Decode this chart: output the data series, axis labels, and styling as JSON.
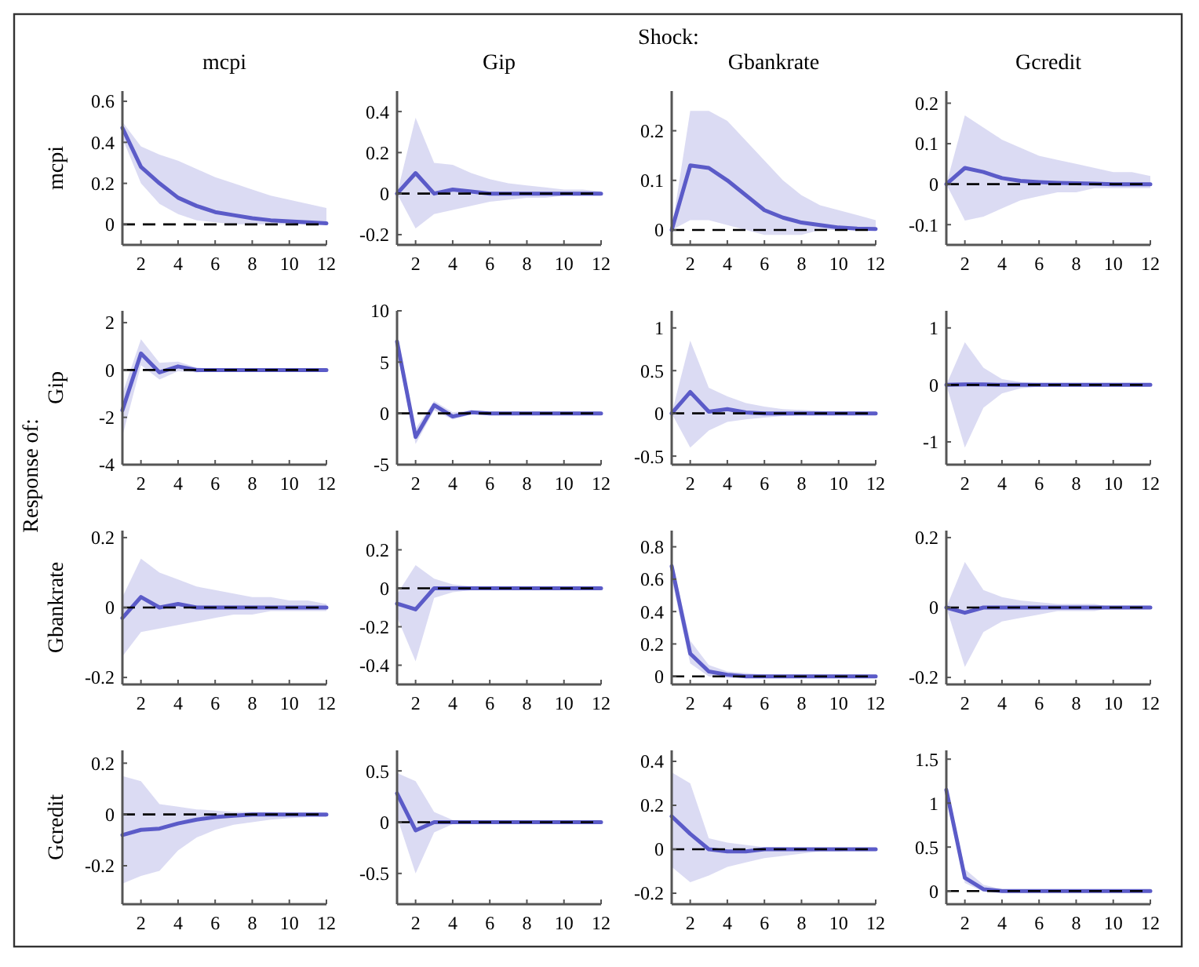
{
  "chart_data": [
    {
      "type": "line",
      "title": "mcpi",
      "ylabel": "mcpi",
      "annotations": [
        "Shock:",
        "Response of:"
      ],
      "x": [
        1,
        2,
        3,
        4,
        5,
        6,
        7,
        8,
        9,
        10,
        11,
        12
      ],
      "xlim": [
        1,
        12
      ],
      "xticks": [
        2,
        4,
        6,
        8,
        10,
        12
      ],
      "ylim": [
        -0.1,
        0.65
      ],
      "yticks": [
        0,
        0.2,
        0.4,
        0.6
      ],
      "ref_lines": [
        {
          "axis": "y",
          "value": 0,
          "line_style": "dashed",
          "color": "#000000"
        }
      ],
      "series": [
        {
          "color": "#5b5bc8",
          "values": [
            0.47,
            0.28,
            0.2,
            0.13,
            0.09,
            0.06,
            0.045,
            0.03,
            0.02,
            0.015,
            0.01,
            0.005
          ],
          "lower": [
            0.42,
            0.2,
            0.1,
            0.05,
            0.02,
            0.01,
            0,
            0,
            0,
            0,
            0,
            0
          ],
          "upper": [
            0.5,
            0.38,
            0.34,
            0.31,
            0.27,
            0.23,
            0.2,
            0.17,
            0.14,
            0.12,
            0.1,
            0.08
          ]
        }
      ]
    },
    {
      "type": "line",
      "title": "Gip",
      "x": [
        1,
        2,
        3,
        4,
        5,
        6,
        7,
        8,
        9,
        10,
        11,
        12
      ],
      "xlim": [
        1,
        12
      ],
      "xticks": [
        2,
        4,
        6,
        8,
        10,
        12
      ],
      "ylim": [
        -0.25,
        0.5
      ],
      "yticks": [
        -0.2,
        0,
        0.2,
        0.4
      ],
      "ref_lines": [
        {
          "axis": "y",
          "value": 0,
          "line_style": "dashed",
          "color": "#000000"
        }
      ],
      "series": [
        {
          "color": "#5b5bc8",
          "values": [
            0,
            0.1,
            0,
            0.02,
            0.01,
            0,
            0,
            0,
            0,
            0,
            0,
            0
          ],
          "lower": [
            0,
            -0.17,
            -0.1,
            -0.08,
            -0.06,
            -0.04,
            -0.03,
            -0.02,
            -0.02,
            -0.01,
            -0.01,
            -0.01
          ],
          "upper": [
            0,
            0.37,
            0.15,
            0.14,
            0.1,
            0.07,
            0.05,
            0.04,
            0.03,
            0.02,
            0.02,
            0.01
          ]
        }
      ]
    },
    {
      "type": "line",
      "title": "Gbankrate",
      "x": [
        1,
        2,
        3,
        4,
        5,
        6,
        7,
        8,
        9,
        10,
        11,
        12
      ],
      "xlim": [
        1,
        12
      ],
      "xticks": [
        2,
        4,
        6,
        8,
        10,
        12
      ],
      "ylim": [
        -0.03,
        0.28
      ],
      "yticks": [
        0,
        0.1,
        0.2
      ],
      "ref_lines": [
        {
          "axis": "y",
          "value": 0,
          "line_style": "dashed",
          "color": "#000000"
        }
      ],
      "series": [
        {
          "color": "#5b5bc8",
          "values": [
            0,
            0.13,
            0.125,
            0.1,
            0.07,
            0.04,
            0.025,
            0.015,
            0.01,
            0.005,
            0.003,
            0.002
          ],
          "lower": [
            0,
            0.02,
            0.02,
            0.01,
            0,
            -0.01,
            -0.01,
            -0.01,
            0,
            0,
            0,
            0
          ],
          "upper": [
            0,
            0.24,
            0.24,
            0.22,
            0.18,
            0.14,
            0.1,
            0.07,
            0.05,
            0.04,
            0.03,
            0.02
          ]
        }
      ]
    },
    {
      "type": "line",
      "title": "Gcredit",
      "x": [
        1,
        2,
        3,
        4,
        5,
        6,
        7,
        8,
        9,
        10,
        11,
        12
      ],
      "xlim": [
        1,
        12
      ],
      "xticks": [
        2,
        4,
        6,
        8,
        10,
        12
      ],
      "ylim": [
        -0.15,
        0.23
      ],
      "yticks": [
        -0.1,
        0,
        0.1,
        0.2
      ],
      "ref_lines": [
        {
          "axis": "y",
          "value": 0,
          "line_style": "dashed",
          "color": "#000000"
        }
      ],
      "series": [
        {
          "color": "#5b5bc8",
          "values": [
            0,
            0.04,
            0.03,
            0.015,
            0.008,
            0.005,
            0.003,
            0.002,
            0.001,
            0,
            0,
            0
          ],
          "lower": [
            0,
            -0.09,
            -0.08,
            -0.06,
            -0.04,
            -0.03,
            -0.02,
            -0.02,
            -0.01,
            -0.01,
            -0.01,
            -0.01
          ],
          "upper": [
            0,
            0.17,
            0.14,
            0.11,
            0.09,
            0.07,
            0.06,
            0.05,
            0.04,
            0.03,
            0.03,
            0.02
          ]
        }
      ]
    },
    {
      "type": "line",
      "ylabel": "Gip",
      "x": [
        1,
        2,
        3,
        4,
        5,
        6,
        7,
        8,
        9,
        10,
        11,
        12
      ],
      "xlim": [
        1,
        12
      ],
      "xticks": [
        2,
        4,
        6,
        8,
        10,
        12
      ],
      "ylim": [
        -4,
        2.5
      ],
      "yticks": [
        -4,
        -2,
        0,
        2
      ],
      "ref_lines": [
        {
          "axis": "y",
          "value": 0,
          "line_style": "dashed",
          "color": "#000000"
        }
      ],
      "series": [
        {
          "color": "#5b5bc8",
          "values": [
            -1.7,
            0.7,
            -0.1,
            0.15,
            0,
            0,
            0,
            0,
            0,
            0,
            0,
            0
          ],
          "lower": [
            -2.8,
            0.2,
            -0.4,
            -0.05,
            -0.1,
            -0.05,
            -0.03,
            -0.02,
            -0.01,
            -0.01,
            0,
            0
          ],
          "upper": [
            -1,
            1.3,
            0.3,
            0.35,
            0.1,
            0.05,
            0.03,
            0.02,
            0.01,
            0.01,
            0,
            0
          ]
        }
      ]
    },
    {
      "type": "line",
      "x": [
        1,
        2,
        3,
        4,
        5,
        6,
        7,
        8,
        9,
        10,
        11,
        12
      ],
      "xlim": [
        1,
        12
      ],
      "xticks": [
        2,
        4,
        6,
        8,
        10,
        12
      ],
      "ylim": [
        -5,
        10
      ],
      "yticks": [
        -5,
        0,
        5,
        10
      ],
      "ref_lines": [
        {
          "axis": "y",
          "value": 0,
          "line_style": "dashed",
          "color": "#000000"
        }
      ],
      "series": [
        {
          "color": "#5b5bc8",
          "values": [
            7,
            -2.3,
            0.8,
            -0.3,
            0.1,
            0,
            0,
            0,
            0,
            0,
            0,
            0
          ],
          "lower": [
            6,
            -3,
            0.3,
            -0.6,
            -0.1,
            -0.1,
            -0.05,
            0,
            0,
            0,
            0,
            0
          ],
          "upper": [
            7.5,
            -1.5,
            1.2,
            0.1,
            0.3,
            0.1,
            0.05,
            0,
            0,
            0,
            0,
            0
          ]
        }
      ]
    },
    {
      "type": "line",
      "x": [
        1,
        2,
        3,
        4,
        5,
        6,
        7,
        8,
        9,
        10,
        11,
        12
      ],
      "xlim": [
        1,
        12
      ],
      "xticks": [
        2,
        4,
        6,
        8,
        10,
        12
      ],
      "ylim": [
        -0.6,
        1.2
      ],
      "yticks": [
        -0.5,
        0,
        0.5,
        1
      ],
      "ref_lines": [
        {
          "axis": "y",
          "value": 0,
          "line_style": "dashed",
          "color": "#000000"
        }
      ],
      "series": [
        {
          "color": "#5b5bc8",
          "values": [
            0,
            0.25,
            0.02,
            0.05,
            0.01,
            0,
            0,
            0,
            0,
            0,
            0,
            0
          ],
          "lower": [
            0,
            -0.4,
            -0.2,
            -0.1,
            -0.07,
            -0.05,
            -0.03,
            -0.02,
            -0.02,
            -0.01,
            -0.01,
            -0.01
          ],
          "upper": [
            0,
            0.85,
            0.3,
            0.2,
            0.12,
            0.08,
            0.05,
            0.04,
            0.03,
            0.02,
            0.02,
            0.01
          ]
        }
      ]
    },
    {
      "type": "line",
      "x": [
        1,
        2,
        3,
        4,
        5,
        6,
        7,
        8,
        9,
        10,
        11,
        12
      ],
      "xlim": [
        1,
        12
      ],
      "xticks": [
        2,
        4,
        6,
        8,
        10,
        12
      ],
      "ylim": [
        -1.4,
        1.3
      ],
      "yticks": [
        -1,
        0,
        1
      ],
      "ref_lines": [
        {
          "axis": "y",
          "value": 0,
          "line_style": "dashed",
          "color": "#000000"
        }
      ],
      "series": [
        {
          "color": "#5b5bc8",
          "values": [
            0,
            0.01,
            0.01,
            0,
            0,
            0,
            0,
            0,
            0,
            0,
            0,
            0
          ],
          "lower": [
            0,
            -1.1,
            -0.4,
            -0.15,
            -0.06,
            -0.03,
            -0.02,
            -0.01,
            -0.01,
            0,
            0,
            0
          ],
          "upper": [
            0,
            0.75,
            0.3,
            0.1,
            0.05,
            0.03,
            0.02,
            0.01,
            0.01,
            0,
            0,
            0
          ]
        }
      ]
    },
    {
      "type": "line",
      "ylabel": "Gbankrate",
      "x": [
        1,
        2,
        3,
        4,
        5,
        6,
        7,
        8,
        9,
        10,
        11,
        12
      ],
      "xlim": [
        1,
        12
      ],
      "xticks": [
        2,
        4,
        6,
        8,
        10,
        12
      ],
      "ylim": [
        -0.22,
        0.22
      ],
      "yticks": [
        -0.2,
        0,
        0.2
      ],
      "ref_lines": [
        {
          "axis": "y",
          "value": 0,
          "line_style": "dashed",
          "color": "#000000"
        }
      ],
      "series": [
        {
          "color": "#5b5bc8",
          "values": [
            -0.03,
            0.03,
            0,
            0.01,
            0,
            0,
            0,
            0,
            0,
            0,
            0,
            0
          ],
          "lower": [
            -0.14,
            -0.07,
            -0.06,
            -0.05,
            -0.04,
            -0.03,
            -0.02,
            -0.02,
            -0.01,
            -0.01,
            -0.01,
            -0.01
          ],
          "upper": [
            0.03,
            0.14,
            0.1,
            0.08,
            0.06,
            0.05,
            0.04,
            0.03,
            0.03,
            0.02,
            0.02,
            0.01
          ]
        }
      ]
    },
    {
      "type": "line",
      "x": [
        1,
        2,
        3,
        4,
        5,
        6,
        7,
        8,
        9,
        10,
        11,
        12
      ],
      "xlim": [
        1,
        12
      ],
      "xticks": [
        2,
        4,
        6,
        8,
        10,
        12
      ],
      "ylim": [
        -0.5,
        0.3
      ],
      "yticks": [
        -0.4,
        -0.2,
        0,
        0.2
      ],
      "ref_lines": [
        {
          "axis": "y",
          "value": 0,
          "line_style": "dashed",
          "color": "#000000"
        }
      ],
      "series": [
        {
          "color": "#5b5bc8",
          "values": [
            -0.08,
            -0.11,
            0,
            0,
            0,
            0,
            0,
            0,
            0,
            0,
            0,
            0
          ],
          "lower": [
            -0.15,
            -0.38,
            -0.05,
            -0.02,
            -0.01,
            0,
            0,
            0,
            0,
            0,
            0,
            0
          ],
          "upper": [
            -0.03,
            0.12,
            0.05,
            0.02,
            0.01,
            0,
            0,
            0,
            0,
            0,
            0,
            0
          ]
        }
      ]
    },
    {
      "type": "line",
      "x": [
        1,
        2,
        3,
        4,
        5,
        6,
        7,
        8,
        9,
        10,
        11,
        12
      ],
      "xlim": [
        1,
        12
      ],
      "xticks": [
        2,
        4,
        6,
        8,
        10,
        12
      ],
      "ylim": [
        -0.05,
        0.9
      ],
      "yticks": [
        0,
        0.2,
        0.4,
        0.6,
        0.8
      ],
      "ref_lines": [
        {
          "axis": "y",
          "value": 0,
          "line_style": "dashed",
          "color": "#000000"
        }
      ],
      "series": [
        {
          "color": "#5b5bc8",
          "values": [
            0.68,
            0.14,
            0.03,
            0.01,
            0,
            0,
            0,
            0,
            0,
            0,
            0,
            0
          ],
          "lower": [
            0.6,
            0.08,
            0,
            -0.01,
            -0.01,
            0,
            0,
            0,
            0,
            0,
            0,
            0
          ],
          "upper": [
            0.72,
            0.22,
            0.07,
            0.03,
            0.02,
            0.01,
            0,
            0,
            0,
            0,
            0,
            0
          ]
        }
      ]
    },
    {
      "type": "line",
      "x": [
        1,
        2,
        3,
        4,
        5,
        6,
        7,
        8,
        9,
        10,
        11,
        12
      ],
      "xlim": [
        1,
        12
      ],
      "xticks": [
        2,
        4,
        6,
        8,
        10,
        12
      ],
      "ylim": [
        -0.22,
        0.22
      ],
      "yticks": [
        -0.2,
        0,
        0.2
      ],
      "ref_lines": [
        {
          "axis": "y",
          "value": 0,
          "line_style": "dashed",
          "color": "#000000"
        }
      ],
      "series": [
        {
          "color": "#5b5bc8",
          "values": [
            0,
            -0.015,
            0,
            0,
            0,
            0,
            0,
            0,
            0,
            0,
            0,
            0
          ],
          "lower": [
            0,
            -0.17,
            -0.07,
            -0.04,
            -0.03,
            -0.02,
            -0.01,
            -0.01,
            -0.01,
            0,
            0,
            0
          ],
          "upper": [
            0,
            0.13,
            0.05,
            0.03,
            0.02,
            0.015,
            0.01,
            0.01,
            0.01,
            0,
            0,
            0
          ]
        }
      ]
    },
    {
      "type": "line",
      "ylabel": "Gcredit",
      "x": [
        1,
        2,
        3,
        4,
        5,
        6,
        7,
        8,
        9,
        10,
        11,
        12
      ],
      "xlim": [
        1,
        12
      ],
      "xticks": [
        2,
        4,
        6,
        8,
        10,
        12
      ],
      "ylim": [
        -0.35,
        0.25
      ],
      "yticks": [
        -0.2,
        0,
        0.2
      ],
      "ref_lines": [
        {
          "axis": "y",
          "value": 0,
          "line_style": "dashed",
          "color": "#000000"
        }
      ],
      "series": [
        {
          "color": "#5b5bc8",
          "values": [
            -0.08,
            -0.06,
            -0.055,
            -0.035,
            -0.02,
            -0.01,
            -0.005,
            0,
            0,
            0,
            0,
            0
          ],
          "lower": [
            -0.27,
            -0.24,
            -0.22,
            -0.14,
            -0.09,
            -0.06,
            -0.04,
            -0.03,
            -0.02,
            -0.015,
            -0.01,
            -0.01
          ],
          "upper": [
            0.15,
            0.13,
            0.04,
            0.03,
            0.02,
            0.015,
            0.01,
            0.01,
            0.01,
            0.005,
            0.005,
            0.005
          ]
        }
      ]
    },
    {
      "type": "line",
      "x": [
        1,
        2,
        3,
        4,
        5,
        6,
        7,
        8,
        9,
        10,
        11,
        12
      ],
      "xlim": [
        1,
        12
      ],
      "xticks": [
        2,
        4,
        6,
        8,
        10,
        12
      ],
      "ylim": [
        -0.8,
        0.7
      ],
      "yticks": [
        -0.5,
        0,
        0.5
      ],
      "ref_lines": [
        {
          "axis": "y",
          "value": 0,
          "line_style": "dashed",
          "color": "#000000"
        }
      ],
      "series": [
        {
          "color": "#5b5bc8",
          "values": [
            0.28,
            -0.08,
            0,
            0,
            0,
            0,
            0,
            0,
            0,
            0,
            0,
            0
          ],
          "lower": [
            0.05,
            -0.5,
            -0.1,
            -0.02,
            0,
            0,
            0,
            0,
            0,
            0,
            0,
            0
          ],
          "upper": [
            0.48,
            0.4,
            0.1,
            0.02,
            0,
            0,
            0,
            0,
            0,
            0,
            0,
            0
          ]
        }
      ]
    },
    {
      "type": "line",
      "x": [
        1,
        2,
        3,
        4,
        5,
        6,
        7,
        8,
        9,
        10,
        11,
        12
      ],
      "xlim": [
        1,
        12
      ],
      "xticks": [
        2,
        4,
        6,
        8,
        10,
        12
      ],
      "ylim": [
        -0.25,
        0.45
      ],
      "yticks": [
        -0.2,
        0,
        0.2,
        0.4
      ],
      "ref_lines": [
        {
          "axis": "y",
          "value": 0,
          "line_style": "dashed",
          "color": "#000000"
        }
      ],
      "series": [
        {
          "color": "#5b5bc8",
          "values": [
            0.15,
            0.07,
            0,
            -0.01,
            -0.01,
            0,
            0,
            0,
            0,
            0,
            0,
            0
          ],
          "lower": [
            -0.08,
            -0.15,
            -0.12,
            -0.08,
            -0.06,
            -0.04,
            -0.03,
            -0.02,
            -0.01,
            -0.01,
            0,
            0
          ],
          "upper": [
            0.35,
            0.3,
            0.05,
            0.03,
            0.02,
            0.01,
            0.01,
            0,
            0,
            0,
            0,
            0
          ]
        }
      ]
    },
    {
      "type": "line",
      "x": [
        1,
        2,
        3,
        4,
        5,
        6,
        7,
        8,
        9,
        10,
        11,
        12
      ],
      "xlim": [
        1,
        12
      ],
      "xticks": [
        2,
        4,
        6,
        8,
        10,
        12
      ],
      "ylim": [
        -0.15,
        1.6
      ],
      "yticks": [
        0,
        0.5,
        1,
        1.5
      ],
      "ref_lines": [
        {
          "axis": "y",
          "value": 0,
          "line_style": "dashed",
          "color": "#000000"
        }
      ],
      "series": [
        {
          "color": "#5b5bc8",
          "values": [
            1.15,
            0.15,
            0.02,
            0,
            0,
            0,
            0,
            0,
            0,
            0,
            0,
            0
          ],
          "lower": [
            1.08,
            0.09,
            -0.01,
            0,
            0,
            0,
            0,
            0,
            0,
            0,
            0,
            0
          ],
          "upper": [
            1.2,
            0.25,
            0.07,
            0.02,
            0,
            0,
            0,
            0,
            0,
            0,
            0,
            0
          ]
        }
      ]
    }
  ]
}
